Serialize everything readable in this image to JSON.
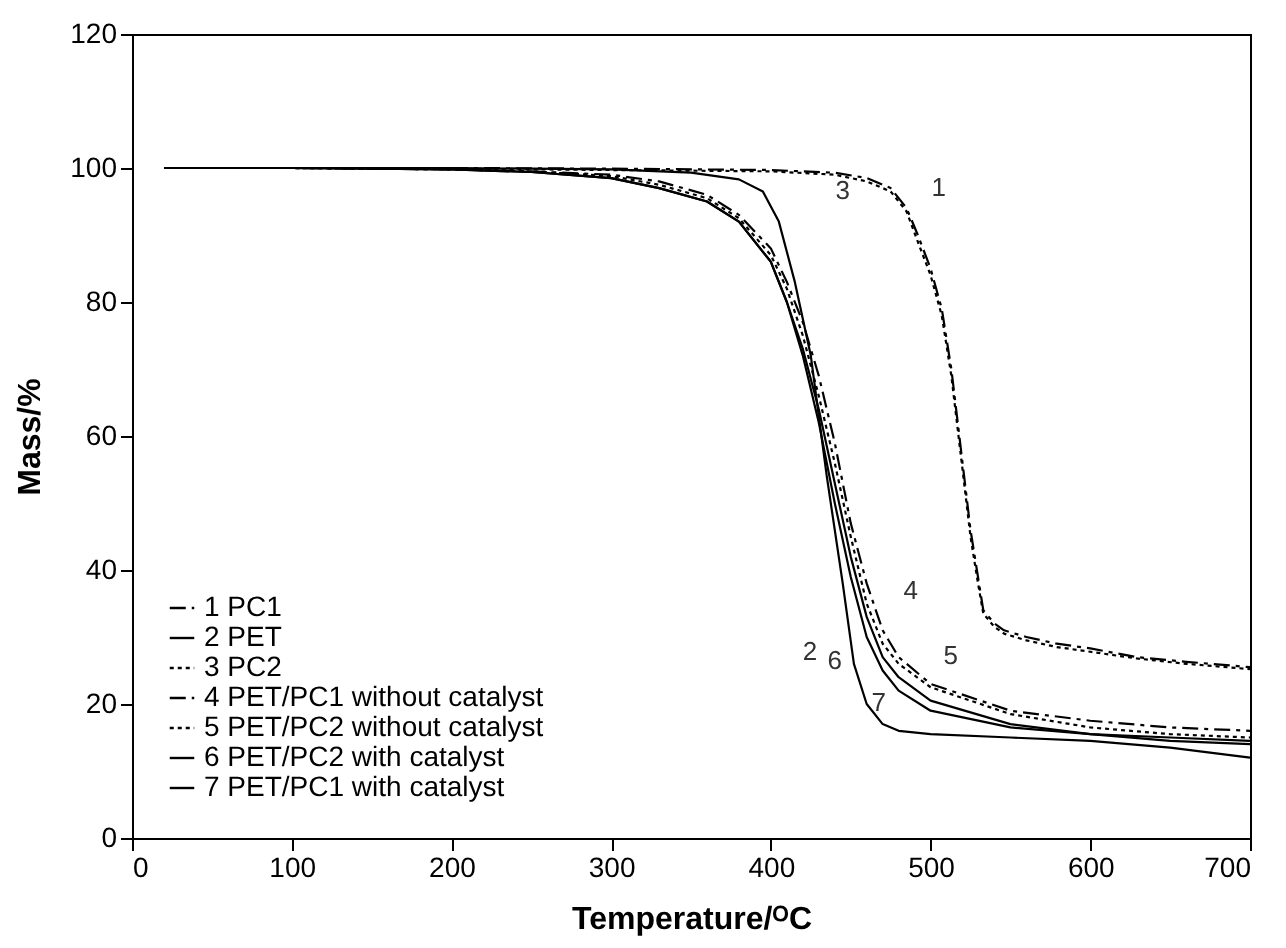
{
  "chart_data": {
    "type": "line",
    "xlabel": "Temperature/ᴼC",
    "ylabel": "Mass/%",
    "xlim": [
      0,
      700
    ],
    "xticks": [
      0,
      100,
      200,
      300,
      400,
      500,
      600,
      700
    ],
    "ylim": [
      0,
      120
    ],
    "yticks": [
      0,
      20,
      40,
      60,
      80,
      100,
      120
    ],
    "grid": false,
    "legend": "bottom left",
    "marker": "none",
    "series": [
      {
        "name": "1 PC1",
        "color": "#000000",
        "line_style": "dashed",
        "x": [
          20,
          100,
          200,
          300,
          400,
          440,
          460,
          475,
          485,
          492,
          500,
          507,
          513,
          517,
          521,
          525,
          529,
          533,
          540,
          546,
          560,
          579,
          600,
          629,
          660,
          700
        ],
        "values": [
          100,
          100,
          100,
          99.9,
          99.7,
          99.3,
          98.5,
          97,
          94,
          90,
          85,
          79,
          70,
          62,
          54,
          46,
          40,
          34,
          32,
          31,
          30,
          29,
          28.3,
          27,
          26.3,
          25.5
        ]
      },
      {
        "name": "2 PET",
        "color": "#000000",
        "line_style": "solid",
        "x": [
          23,
          100,
          200,
          300,
          350,
          380,
          395,
          405,
          415,
          425,
          435,
          445,
          452,
          460,
          470,
          480,
          500,
          550,
          600,
          650,
          700
        ],
        "values": [
          100,
          100,
          100,
          99.8,
          99.3,
          98.3,
          96.5,
          92,
          83,
          72,
          54,
          38,
          26,
          20,
          17,
          16,
          15.5,
          15,
          14.5,
          13.5,
          12
        ]
      },
      {
        "name": "3 PC2",
        "color": "#000000",
        "line_style": "dotted",
        "x": [
          26,
          100,
          200,
          300,
          400,
          440,
          460,
          475,
          485,
          492,
          500,
          507,
          513,
          517,
          521,
          525,
          529,
          533,
          540,
          546,
          560,
          579,
          600,
          629,
          660,
          700
        ],
        "values": [
          100,
          100,
          99.9,
          99.7,
          99.5,
          99,
          98,
          96.5,
          93.5,
          89,
          84,
          78,
          69,
          61,
          53,
          45,
          39,
          33.5,
          31.5,
          30.5,
          29.5,
          28.5,
          27.8,
          26.8,
          26,
          25.2
        ]
      },
      {
        "name": "4 PET/PC1 without catalyst",
        "color": "#000000",
        "line_style": "dashed",
        "x": [
          29,
          100,
          200,
          250,
          300,
          330,
          360,
          380,
          400,
          410,
          420,
          430,
          440,
          450,
          460,
          470,
          480,
          500,
          550,
          600,
          650,
          700
        ],
        "values": [
          100,
          100,
          99.8,
          99.5,
          99,
          98,
          96,
          93,
          88,
          83,
          77,
          69,
          59,
          47,
          38,
          31,
          27,
          23,
          19,
          17.5,
          16.5,
          16
        ]
      },
      {
        "name": "5 PET/PC2 without catalyst",
        "color": "#000000",
        "line_style": "dotted",
        "x": [
          32,
          100,
          200,
          250,
          300,
          330,
          360,
          380,
          400,
          410,
          420,
          430,
          440,
          450,
          460,
          470,
          480,
          500,
          550,
          600,
          650,
          700
        ],
        "values": [
          100,
          100,
          99.8,
          99.5,
          98.8,
          97.5,
          95.5,
          92.5,
          87,
          82,
          75,
          66,
          56,
          45,
          35,
          29,
          26,
          22.5,
          18.5,
          16.5,
          15.5,
          15
        ]
      },
      {
        "name": "6 PET/PC2 with catalyst",
        "color": "#000000",
        "line_style": "solid",
        "x": [
          35,
          100,
          200,
          250,
          300,
          330,
          360,
          380,
          400,
          410,
          420,
          430,
          440,
          450,
          460,
          470,
          480,
          500,
          550,
          600,
          650,
          700
        ],
        "values": [
          100,
          100,
          99.8,
          99.4,
          98.5,
          97,
          95,
          92,
          86,
          80,
          73,
          64,
          53,
          42,
          33,
          27,
          24,
          20.5,
          17,
          15.5,
          14.5,
          14
        ]
      },
      {
        "name": "7 PET/PC1 with catalyst",
        "color": "#000000",
        "line_style": "solid",
        "x": [
          38,
          100,
          200,
          250,
          300,
          330,
          360,
          380,
          400,
          410,
          420,
          430,
          440,
          450,
          460,
          470,
          480,
          500,
          550,
          600,
          650,
          700
        ],
        "values": [
          100,
          100,
          99.8,
          99.4,
          98.5,
          97,
          95,
          92,
          86,
          80,
          72,
          62,
          50,
          39,
          30,
          25,
          22,
          19,
          16.5,
          15.5,
          15,
          14.5
        ]
      }
    ],
    "annotations": [
      {
        "text": "1",
        "x": 475,
        "y": 97
      },
      {
        "text": "2",
        "x": 452,
        "y": 26
      },
      {
        "text": "3",
        "x": 475,
        "y": 96.5
      },
      {
        "text": "4",
        "x": 460,
        "y": 38
      },
      {
        "text": "5",
        "x": 480,
        "y": 26
      },
      {
        "text": "6",
        "x": 470,
        "y": 27
      },
      {
        "text": "7",
        "x": 480,
        "y": 22
      }
    ]
  }
}
